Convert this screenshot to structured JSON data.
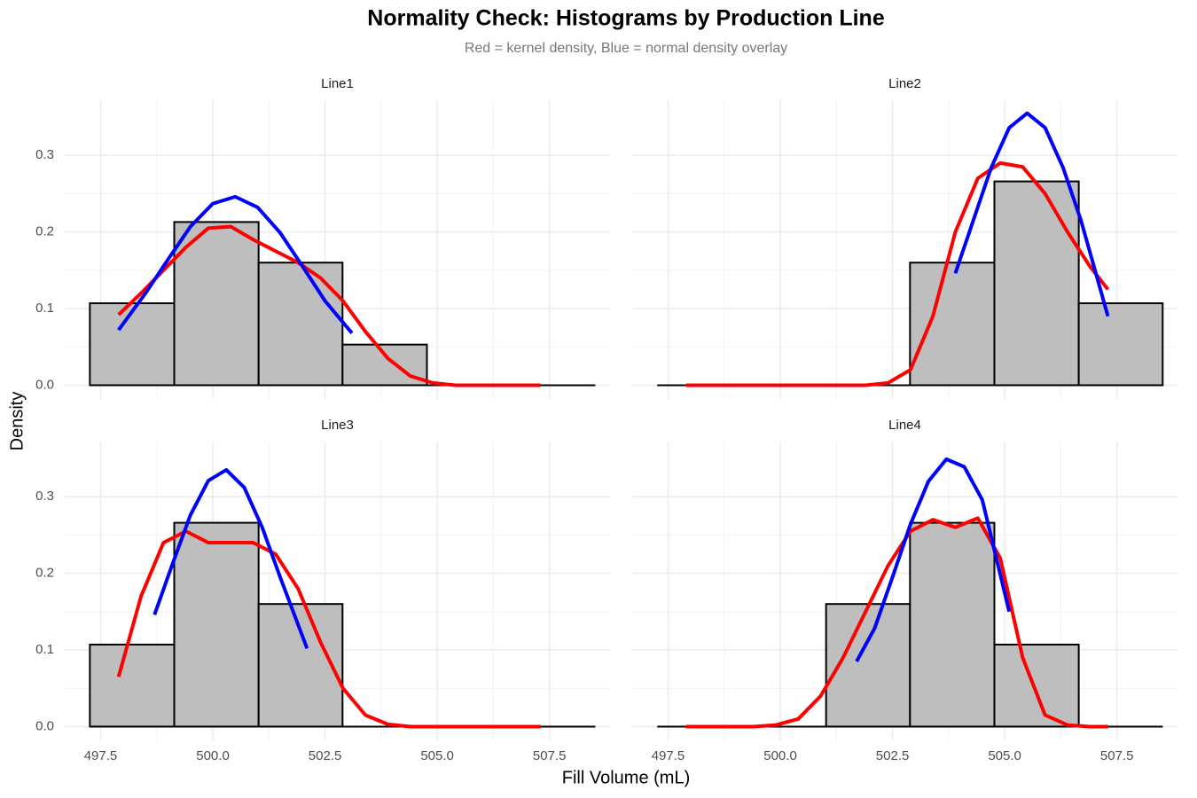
{
  "title": "Normality Check: Histograms by Production Line",
  "subtitle": "Red = kernel density, Blue = normal density overlay",
  "x_label": "Fill Volume (mL)",
  "y_label": "Density",
  "chart_data": [
    {
      "type": "histogram",
      "title": "Line1",
      "color": "#bebebe",
      "grid": true,
      "bins": [
        497.26,
        499.14,
        501.02,
        502.89,
        504.77,
        506.65,
        508.52
      ],
      "values": [
        0.107,
        0.213,
        0.16,
        0.053,
        0,
        0
      ],
      "curves": [
        {
          "color": "#ff0000",
          "x": [
            497.9,
            498.4,
            498.9,
            499.4,
            499.9,
            500.4,
            500.9,
            501.4,
            501.9,
            502.4,
            502.9,
            503.4,
            503.9,
            504.4,
            504.9,
            505.4,
            505.9,
            506.4,
            506.9,
            507.3
          ],
          "values": [
            0.092,
            0.12,
            0.15,
            0.18,
            0.205,
            0.207,
            0.19,
            0.175,
            0.16,
            0.14,
            0.11,
            0.07,
            0.035,
            0.012,
            0.003,
            0,
            0,
            0,
            0,
            0
          ]
        },
        {
          "color": "#0000ff",
          "x": [
            497.9,
            498.5,
            499,
            499.5,
            500,
            500.5,
            501,
            501.5,
            502,
            502.5,
            503.1
          ],
          "values": [
            0.072,
            0.12,
            0.164,
            0.207,
            0.237,
            0.246,
            0.232,
            0.199,
            0.155,
            0.11,
            0.068
          ]
        }
      ],
      "xlim": [
        496.7,
        508.85
      ],
      "ylim": [
        -0.018,
        0.372
      ],
      "xticks": [
        497.5,
        {
          "value": 500,
          "label": "500.0"
        },
        502.5,
        {
          "value": 505,
          "label": "505.0"
        },
        507.5
      ],
      "yticks": [
        {
          "value": 0,
          "label": "0.0"
        },
        0.1,
        0.2,
        0.3
      ]
    },
    {
      "type": "histogram",
      "title": "Line2",
      "color": "#bebebe",
      "grid": true,
      "bins": [
        497.26,
        499.14,
        501.02,
        502.89,
        504.77,
        506.65,
        508.52
      ],
      "values": [
        0,
        0,
        0,
        0.16,
        0.266,
        0.107
      ],
      "curves": [
        {
          "color": "#ff0000",
          "x": [
            497.9,
            498.4,
            498.9,
            499.4,
            499.9,
            500.4,
            500.9,
            501.4,
            501.9,
            502.4,
            502.9,
            503.4,
            503.9,
            504.4,
            504.9,
            505.4,
            505.9,
            506.4,
            506.9,
            507.3
          ],
          "values": [
            0,
            0,
            0,
            0,
            0,
            0,
            0,
            0,
            0,
            0.003,
            0.02,
            0.09,
            0.2,
            0.27,
            0.29,
            0.285,
            0.25,
            0.2,
            0.155,
            0.125
          ]
        },
        {
          "color": "#0000ff",
          "x": [
            503.9,
            504.3,
            504.7,
            505.1,
            505.5,
            505.9,
            506.3,
            506.7,
            507.3
          ],
          "values": [
            0.146,
            0.215,
            0.284,
            0.336,
            0.355,
            0.336,
            0.284,
            0.215,
            0.09
          ]
        }
      ],
      "xlim": [
        496.7,
        508.85
      ],
      "ylim": [
        -0.018,
        0.372
      ],
      "xticks": [
        497.5,
        {
          "value": 500,
          "label": "500.0"
        },
        502.5,
        {
          "value": 505,
          "label": "505.0"
        },
        507.5
      ],
      "yticks": [
        {
          "value": 0,
          "label": "0.0"
        },
        0.1,
        0.2,
        0.3
      ]
    },
    {
      "type": "histogram",
      "title": "Line3",
      "color": "#bebebe",
      "grid": true,
      "bins": [
        497.26,
        499.14,
        501.02,
        502.89,
        504.77,
        506.65,
        508.52
      ],
      "values": [
        0.107,
        0.266,
        0.16,
        0,
        0,
        0
      ],
      "curves": [
        {
          "color": "#ff0000",
          "x": [
            497.9,
            498.4,
            498.9,
            499.4,
            499.9,
            500.4,
            500.9,
            501.4,
            501.9,
            502.4,
            502.9,
            503.4,
            503.9,
            504.4,
            504.9,
            505.4,
            505.9,
            506.4,
            506.9,
            507.3
          ],
          "values": [
            0.065,
            0.17,
            0.24,
            0.255,
            0.24,
            0.24,
            0.24,
            0.225,
            0.18,
            0.11,
            0.05,
            0.015,
            0.003,
            0,
            0,
            0,
            0,
            0,
            0,
            0
          ]
        },
        {
          "color": "#0000ff",
          "x": [
            498.7,
            499.1,
            499.5,
            499.9,
            500.3,
            500.7,
            501.1,
            501.5,
            502.1
          ],
          "values": [
            0.146,
            0.212,
            0.276,
            0.321,
            0.335,
            0.312,
            0.26,
            0.195,
            0.102
          ]
        }
      ],
      "xlim": [
        496.7,
        508.85
      ],
      "ylim": [
        -0.018,
        0.372
      ],
      "xticks": [
        497.5,
        {
          "value": 500,
          "label": "500.0"
        },
        502.5,
        {
          "value": 505,
          "label": "505.0"
        },
        507.5
      ],
      "yticks": [
        {
          "value": 0,
          "label": "0.0"
        },
        0.1,
        0.2,
        0.3
      ]
    },
    {
      "type": "histogram",
      "title": "Line4",
      "color": "#bebebe",
      "grid": true,
      "bins": [
        497.26,
        499.14,
        501.02,
        502.89,
        504.77,
        506.65,
        508.52
      ],
      "values": [
        0,
        0,
        0.16,
        0.266,
        0.107,
        0
      ],
      "curves": [
        {
          "color": "#ff0000",
          "x": [
            497.9,
            498.4,
            498.9,
            499.4,
            499.9,
            500.4,
            500.9,
            501.4,
            501.9,
            502.4,
            502.9,
            503.4,
            503.9,
            504.4,
            504.9,
            505.4,
            505.9,
            506.4,
            506.9,
            507.3
          ],
          "values": [
            0,
            0,
            0,
            0,
            0.002,
            0.01,
            0.04,
            0.09,
            0.15,
            0.21,
            0.255,
            0.27,
            0.26,
            0.272,
            0.22,
            0.09,
            0.015,
            0.002,
            0,
            0
          ]
        },
        {
          "color": "#0000ff",
          "x": [
            501.7,
            502.1,
            502.5,
            502.9,
            503.3,
            503.7,
            504.1,
            504.5,
            505.1
          ],
          "values": [
            0.085,
            0.128,
            0.195,
            0.264,
            0.32,
            0.349,
            0.339,
            0.296,
            0.15
          ]
        }
      ],
      "xlim": [
        496.7,
        508.85
      ],
      "ylim": [
        -0.018,
        0.372
      ],
      "xticks": [
        497.5,
        {
          "value": 500,
          "label": "500.0"
        },
        502.5,
        {
          "value": 505,
          "label": "505.0"
        },
        507.5
      ],
      "yticks": [
        {
          "value": 0,
          "label": "0.0"
        },
        0.1,
        0.2,
        0.3
      ]
    }
  ]
}
